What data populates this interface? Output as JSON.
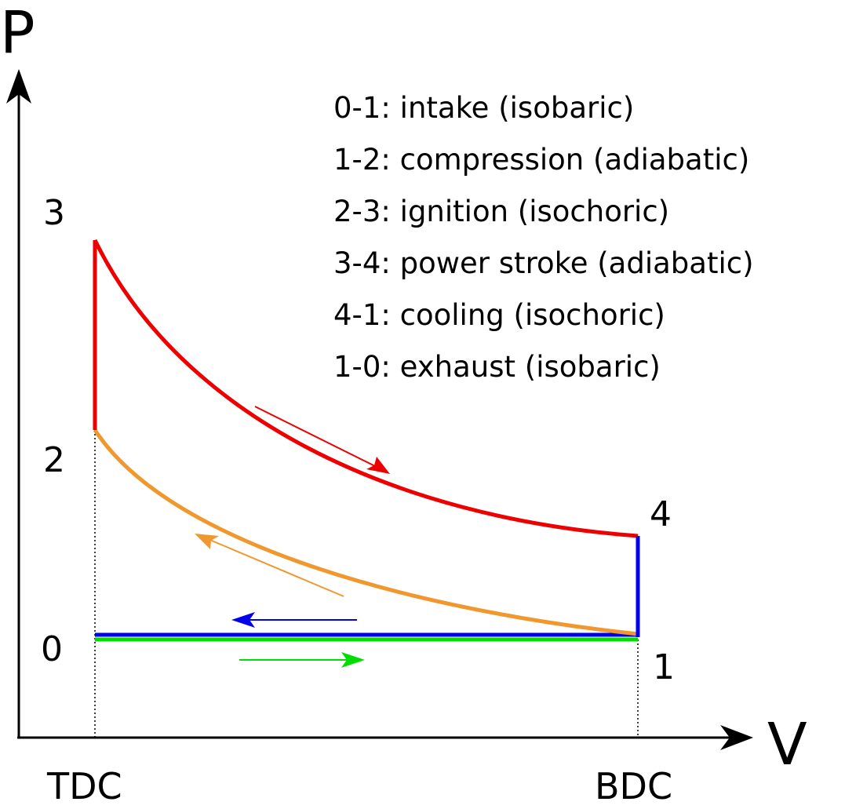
{
  "axes": {
    "y_label": "P",
    "x_label": "V",
    "x_ticks": [
      "TDC",
      "BDC"
    ]
  },
  "points": {
    "p0": "0",
    "p1": "1",
    "p2": "2",
    "p3": "3",
    "p4": "4"
  },
  "legend": [
    "0-1: intake (isobaric)",
    "1-2: compression (adiabatic)",
    "2-3: ignition (isochoric)",
    "3-4: power stroke (adiabatic)",
    "4-1: cooling (isochoric)",
    "1-0: exhaust (isobaric)"
  ],
  "colors": {
    "intake": "#00dd00",
    "compression": "#f0982d",
    "ignition": "#ee0000",
    "power_stroke": "#ee0000",
    "cooling": "#0000ee",
    "exhaust": "#0000ee",
    "axis": "#000000"
  }
}
